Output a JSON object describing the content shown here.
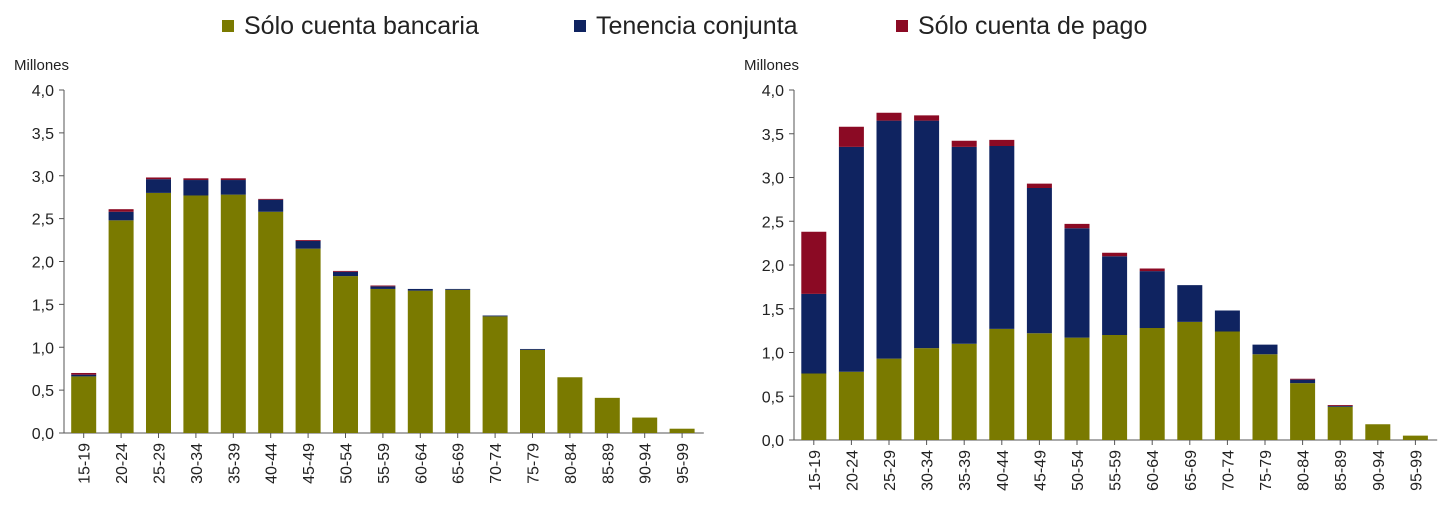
{
  "legend": {
    "items": [
      {
        "label": "Sólo cuenta bancaria",
        "color": "#7a7a00"
      },
      {
        "label": "Tenencia conjunta",
        "color": "#0f2360"
      },
      {
        "label": "Sólo cuenta de pago",
        "color": "#8b0a24"
      }
    ]
  },
  "chart_data": [
    {
      "type": "bar",
      "stacked": true,
      "title": "",
      "ylabel": "Millones",
      "xlabel": "",
      "ylim": [
        0,
        4.0
      ],
      "yticks": [
        "0,0",
        "0,5",
        "1,0",
        "1,5",
        "2,0",
        "2,5",
        "3,0",
        "3,5",
        "4,0"
      ],
      "categories": [
        "15-19",
        "20-24",
        "25-29",
        "30-34",
        "35-39",
        "40-44",
        "45-49",
        "50-54",
        "55-59",
        "60-64",
        "65-69",
        "70-74",
        "75-79",
        "80-84",
        "85-89",
        "90-94",
        "95-99"
      ],
      "series": [
        {
          "name": "Sólo cuenta bancaria",
          "values": [
            0.66,
            2.48,
            2.8,
            2.77,
            2.78,
            2.58,
            2.15,
            1.83,
            1.68,
            1.66,
            1.67,
            1.36,
            0.97,
            0.65,
            0.41,
            0.18,
            0.05
          ]
        },
        {
          "name": "Tenencia conjunta",
          "values": [
            0.02,
            0.1,
            0.16,
            0.18,
            0.17,
            0.14,
            0.09,
            0.05,
            0.03,
            0.02,
            0.01,
            0.01,
            0.01,
            0.0,
            0.0,
            0.0,
            0.0
          ]
        },
        {
          "name": "Sólo cuenta de pago",
          "values": [
            0.02,
            0.03,
            0.02,
            0.02,
            0.02,
            0.01,
            0.01,
            0.01,
            0.01,
            0.0,
            0.0,
            0.0,
            0.0,
            0.0,
            0.0,
            0.0,
            0.0
          ]
        }
      ]
    },
    {
      "type": "bar",
      "stacked": true,
      "title": "",
      "ylabel": "Millones",
      "xlabel": "",
      "ylim": [
        0,
        4.0
      ],
      "yticks": [
        "0,0",
        "0,5",
        "1,0",
        "1,5",
        "2,0",
        "2,5",
        "3,0",
        "3,5",
        "4,0"
      ],
      "categories": [
        "15-19",
        "20-24",
        "25-29",
        "30-34",
        "35-39",
        "40-44",
        "45-49",
        "50-54",
        "55-59",
        "60-64",
        "65-69",
        "70-74",
        "75-79",
        "80-84",
        "85-89",
        "90-94",
        "95-99"
      ],
      "series": [
        {
          "name": "Sólo cuenta bancaria",
          "values": [
            0.76,
            0.78,
            0.93,
            1.05,
            1.1,
            1.27,
            1.22,
            1.17,
            1.2,
            1.28,
            1.35,
            1.24,
            0.98,
            0.65,
            0.38,
            0.18,
            0.05
          ]
        },
        {
          "name": "Tenencia conjunta",
          "values": [
            0.91,
            2.57,
            2.72,
            2.6,
            2.25,
            2.09,
            1.66,
            1.25,
            0.9,
            0.65,
            0.42,
            0.24,
            0.11,
            0.04,
            0.01,
            0.0,
            0.0
          ]
        },
        {
          "name": "Sólo cuenta de pago",
          "values": [
            0.71,
            0.23,
            0.09,
            0.06,
            0.07,
            0.07,
            0.05,
            0.05,
            0.04,
            0.03,
            0.0,
            0.0,
            0.0,
            0.01,
            0.01,
            0.0,
            0.0
          ]
        }
      ]
    }
  ]
}
